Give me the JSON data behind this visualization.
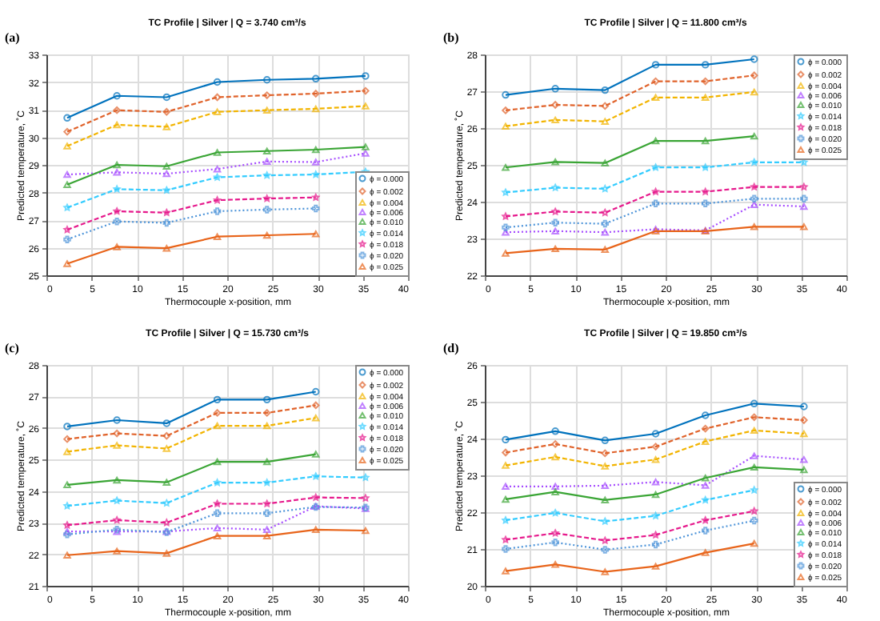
{
  "chart_data": [
    {
      "type": "line",
      "title": "TC Profile | Silver | Q = 3.740 cm³/s",
      "xlabel": "Thermocouple x-position, mm",
      "ylabel": "Predicted temperature, ˚C",
      "annotations": [
        "(a)"
      ],
      "x": [
        2.3,
        7.8,
        13.3,
        18.9,
        24.4,
        29.8,
        35.3
      ],
      "xlim": [
        0,
        40
      ],
      "xticks": [
        0,
        5,
        10,
        15,
        20,
        25,
        30,
        35,
        40
      ],
      "ylim": [
        25,
        33
      ],
      "yticks": [
        25,
        26,
        27,
        28,
        29,
        30,
        31,
        32,
        33
      ],
      "grid": true,
      "legend": "bottom right",
      "series": [
        {
          "name": "ϕ = 0.000",
          "color": "#0072bd",
          "line_style": "solid",
          "marker": "circle",
          "values": [
            30.7,
            31.5,
            31.45,
            32.0,
            32.08,
            32.12,
            32.22
          ]
        },
        {
          "name": "ϕ = 0.002",
          "color": "#e0622a",
          "line_style": "dashed",
          "marker": "diamond",
          "values": [
            30.2,
            30.98,
            30.92,
            31.45,
            31.52,
            31.58,
            31.68
          ]
        },
        {
          "name": "ϕ = 0.004",
          "color": "#f2b400",
          "line_style": "dashed",
          "marker": "triangle",
          "values": [
            29.68,
            30.45,
            30.38,
            30.92,
            30.98,
            31.03,
            31.13
          ]
        },
        {
          "name": "ϕ = 0.006",
          "color": "#a64dff",
          "line_style": "dotted",
          "marker": "triangle",
          "values": [
            28.65,
            28.73,
            28.68,
            28.85,
            29.12,
            29.1,
            29.42
          ]
        },
        {
          "name": "ϕ = 0.010",
          "color": "#3aa535",
          "line_style": "solid",
          "marker": "triangle",
          "values": [
            28.28,
            29.0,
            28.95,
            29.45,
            29.5,
            29.55,
            29.65
          ]
        },
        {
          "name": "ϕ = 0.014",
          "color": "#33ccff",
          "line_style": "dashed",
          "marker": "star",
          "values": [
            27.45,
            28.12,
            28.08,
            28.55,
            28.62,
            28.65,
            28.75
          ]
        },
        {
          "name": "ϕ = 0.018",
          "color": "#e6198c",
          "line_style": "dashed",
          "marker": "star",
          "values": [
            26.65,
            27.32,
            27.27,
            27.72,
            27.78,
            27.82,
            null
          ]
        },
        {
          "name": "ϕ = 0.020",
          "color": "#4d94d9",
          "line_style": "dotted",
          "marker": "cross",
          "values": [
            26.3,
            26.95,
            26.9,
            27.32,
            27.38,
            27.42,
            null
          ]
        },
        {
          "name": "ϕ = 0.025",
          "color": "#e8641a",
          "line_style": "solid",
          "marker": "triangle",
          "values": [
            25.42,
            26.03,
            25.98,
            26.4,
            26.45,
            26.5,
            null
          ]
        }
      ]
    },
    {
      "type": "line",
      "title": "TC Profile | Silver | Q = 11.800 cm³/s",
      "xlabel": "Thermocouple x-position, mm",
      "ylabel": "Predicted temperature, ˚C",
      "annotations": [
        "(b)"
      ],
      "x": [
        2.3,
        7.8,
        13.3,
        18.9,
        24.4,
        29.8,
        35.3
      ],
      "xlim": [
        0,
        40
      ],
      "xticks": [
        0,
        5,
        10,
        15,
        20,
        25,
        30,
        35,
        40
      ],
      "ylim": [
        22,
        28
      ],
      "yticks": [
        22,
        23,
        24,
        25,
        26,
        27,
        28
      ],
      "grid": true,
      "legend": "top right",
      "series": [
        {
          "name": "ϕ = 0.000",
          "color": "#0072bd",
          "line_style": "solid",
          "marker": "circle",
          "values": [
            26.9,
            27.07,
            27.03,
            27.72,
            27.72,
            27.87,
            null
          ]
        },
        {
          "name": "ϕ = 0.002",
          "color": "#e0622a",
          "line_style": "dashed",
          "marker": "diamond",
          "values": [
            26.48,
            26.63,
            26.6,
            27.27,
            27.27,
            27.43,
            null
          ]
        },
        {
          "name": "ϕ = 0.004",
          "color": "#f2b400",
          "line_style": "dashed",
          "marker": "triangle",
          "values": [
            26.05,
            26.22,
            26.18,
            26.83,
            26.83,
            26.98,
            null
          ]
        },
        {
          "name": "ϕ = 0.006",
          "color": "#a64dff",
          "line_style": "dotted",
          "marker": "triangle",
          "values": [
            23.17,
            23.2,
            23.17,
            23.25,
            23.22,
            23.92,
            23.87
          ]
        },
        {
          "name": "ϕ = 0.010",
          "color": "#3aa535",
          "line_style": "solid",
          "marker": "triangle",
          "values": [
            24.93,
            25.08,
            25.05,
            25.65,
            25.65,
            25.78,
            null
          ]
        },
        {
          "name": "ϕ = 0.014",
          "color": "#33ccff",
          "line_style": "dashed",
          "marker": "star",
          "values": [
            24.25,
            24.38,
            24.35,
            24.93,
            24.93,
            25.07,
            25.07
          ]
        },
        {
          "name": "ϕ = 0.018",
          "color": "#e6198c",
          "line_style": "dashed",
          "marker": "star",
          "values": [
            23.6,
            23.73,
            23.7,
            24.27,
            24.27,
            24.4,
            24.4
          ]
        },
        {
          "name": "ϕ = 0.020",
          "color": "#4d94d9",
          "line_style": "dotted",
          "marker": "cross",
          "values": [
            23.3,
            23.43,
            23.4,
            23.95,
            23.95,
            24.08,
            24.08
          ]
        },
        {
          "name": "ϕ = 0.025",
          "color": "#e8641a",
          "line_style": "solid",
          "marker": "triangle",
          "values": [
            22.6,
            22.72,
            22.7,
            23.2,
            23.2,
            23.32,
            23.32
          ]
        }
      ]
    },
    {
      "type": "line",
      "title": "TC Profile | Silver | Q = 15.730 cm³/s",
      "xlabel": "Thermocouple x-position, mm",
      "ylabel": "Predicted temperature, ˚C",
      "annotations": [
        "(c)"
      ],
      "x": [
        2.3,
        7.8,
        13.3,
        18.9,
        24.4,
        29.8,
        35.3
      ],
      "xlim": [
        0,
        40
      ],
      "xticks": [
        0,
        5,
        10,
        15,
        20,
        25,
        30,
        35,
        40
      ],
      "ylim": [
        21,
        28
      ],
      "yticks": [
        21,
        22,
        23,
        24,
        25,
        26,
        27,
        28
      ],
      "grid": true,
      "legend": "top right",
      "series": [
        {
          "name": "ϕ = 0.000",
          "color": "#0072bd",
          "line_style": "solid",
          "marker": "circle",
          "values": [
            26.05,
            26.25,
            26.15,
            26.9,
            26.9,
            27.15,
            null
          ]
        },
        {
          "name": "ϕ = 0.002",
          "color": "#e0622a",
          "line_style": "dashed",
          "marker": "diamond",
          "values": [
            25.65,
            25.83,
            25.75,
            26.48,
            26.48,
            26.72,
            null
          ]
        },
        {
          "name": "ϕ = 0.004",
          "color": "#f2b400",
          "line_style": "dashed",
          "marker": "triangle",
          "values": [
            25.25,
            25.45,
            25.35,
            26.07,
            26.07,
            26.32,
            null
          ]
        },
        {
          "name": "ϕ = 0.006",
          "color": "#a64dff",
          "line_style": "dotted",
          "marker": "triangle",
          "values": [
            22.72,
            22.72,
            22.72,
            22.83,
            22.78,
            23.52,
            23.45
          ]
        },
        {
          "name": "ϕ = 0.010",
          "color": "#3aa535",
          "line_style": "solid",
          "marker": "triangle",
          "values": [
            24.2,
            24.35,
            24.28,
            24.93,
            24.93,
            25.17,
            null
          ]
        },
        {
          "name": "ϕ = 0.014",
          "color": "#33ccff",
          "line_style": "dashed",
          "marker": "star",
          "values": [
            23.53,
            23.7,
            23.62,
            24.27,
            24.27,
            24.47,
            24.43
          ]
        },
        {
          "name": "ϕ = 0.018",
          "color": "#e6198c",
          "line_style": "dashed",
          "marker": "star",
          "values": [
            22.92,
            23.08,
            23.0,
            23.6,
            23.6,
            23.8,
            23.78
          ]
        },
        {
          "name": "ϕ = 0.020",
          "color": "#4d94d9",
          "line_style": "dotted",
          "marker": "cross",
          "values": [
            22.63,
            22.78,
            22.7,
            23.3,
            23.3,
            23.5,
            23.48
          ]
        },
        {
          "name": "ϕ = 0.025",
          "color": "#e8641a",
          "line_style": "solid",
          "marker": "triangle",
          "values": [
            21.97,
            22.1,
            22.03,
            22.58,
            22.58,
            22.78,
            22.75
          ]
        }
      ]
    },
    {
      "type": "line",
      "title": "TC Profile | Silver | Q = 19.850 cm³/s",
      "xlabel": "Thermocouple x-position, mm",
      "ylabel": "Predicted temperature, ˚C",
      "annotations": [
        "(d)"
      ],
      "x": [
        2.3,
        7.8,
        13.3,
        18.9,
        24.4,
        29.8,
        35.3
      ],
      "xlim": [
        0,
        40
      ],
      "xticks": [
        0,
        5,
        10,
        15,
        20,
        25,
        30,
        35,
        40
      ],
      "ylim": [
        20,
        26
      ],
      "yticks": [
        20,
        21,
        22,
        23,
        24,
        25,
        26
      ],
      "grid": true,
      "legend": "bottom right",
      "series": [
        {
          "name": "ϕ = 0.000",
          "color": "#0072bd",
          "line_style": "solid",
          "marker": "circle",
          "values": [
            23.97,
            24.2,
            23.95,
            24.13,
            24.63,
            24.95,
            24.87
          ]
        },
        {
          "name": "ϕ = 0.002",
          "color": "#e0622a",
          "line_style": "dashed",
          "marker": "diamond",
          "values": [
            23.62,
            23.85,
            23.6,
            23.78,
            24.27,
            24.58,
            24.5
          ]
        },
        {
          "name": "ϕ = 0.004",
          "color": "#f2b400",
          "line_style": "dashed",
          "marker": "triangle",
          "values": [
            23.27,
            23.5,
            23.25,
            23.43,
            23.92,
            24.22,
            24.13
          ]
        },
        {
          "name": "ϕ = 0.006",
          "color": "#a64dff",
          "line_style": "dotted",
          "marker": "triangle",
          "values": [
            22.7,
            22.7,
            22.72,
            22.82,
            22.73,
            23.53,
            23.43
          ]
        },
        {
          "name": "ϕ = 0.010",
          "color": "#3aa535",
          "line_style": "solid",
          "marker": "triangle",
          "values": [
            22.35,
            22.55,
            22.33,
            22.48,
            22.93,
            23.22,
            23.15
          ]
        },
        {
          "name": "ϕ = 0.014",
          "color": "#33ccff",
          "line_style": "dashed",
          "marker": "star",
          "values": [
            21.78,
            21.98,
            21.75,
            21.9,
            22.33,
            22.6,
            null
          ]
        },
        {
          "name": "ϕ = 0.018",
          "color": "#e6198c",
          "line_style": "dashed",
          "marker": "star",
          "values": [
            21.25,
            21.43,
            21.23,
            21.38,
            21.78,
            22.03,
            null
          ]
        },
        {
          "name": "ϕ = 0.020",
          "color": "#4d94d9",
          "line_style": "dotted",
          "marker": "cross",
          "values": [
            21.0,
            21.18,
            20.98,
            21.12,
            21.5,
            21.77,
            null
          ]
        },
        {
          "name": "ϕ = 0.025",
          "color": "#e8641a",
          "line_style": "solid",
          "marker": "triangle",
          "values": [
            20.4,
            20.58,
            20.38,
            20.53,
            20.9,
            21.15,
            null
          ]
        }
      ]
    }
  ]
}
